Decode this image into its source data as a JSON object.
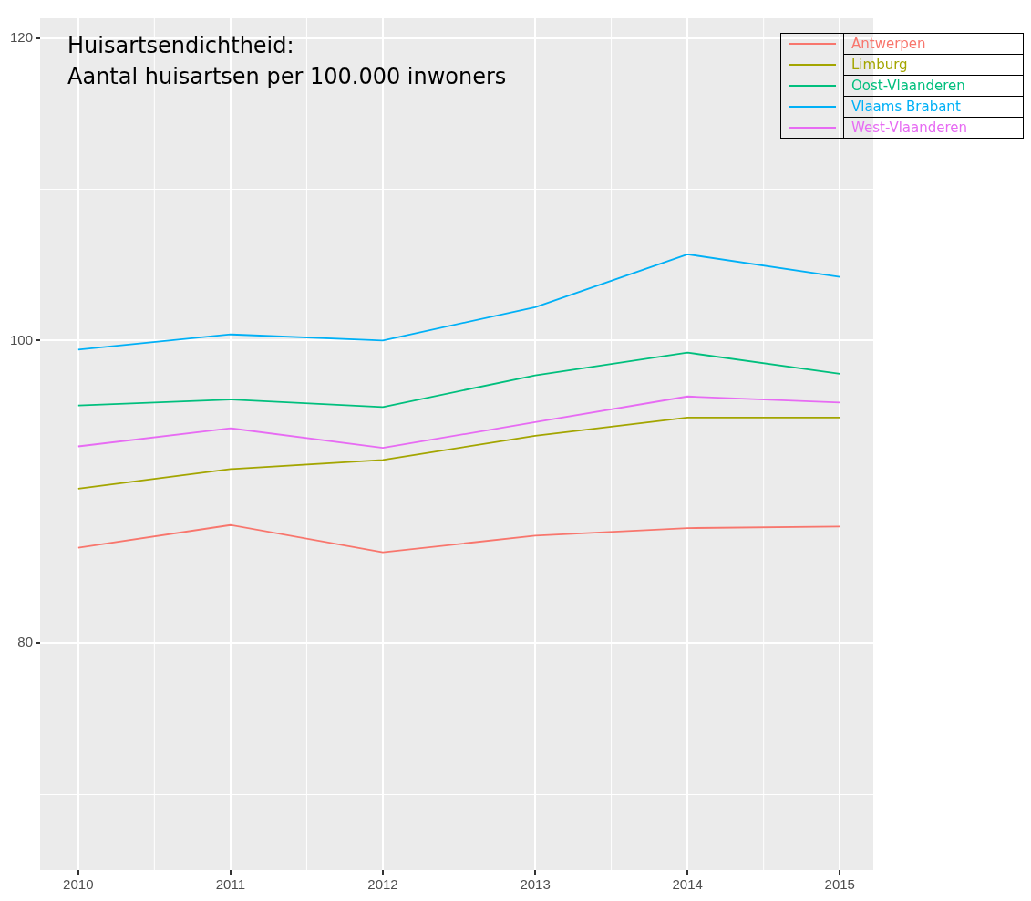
{
  "chart_data": {
    "type": "line",
    "title": "Huisartsendichtheid:",
    "subtitle": "Aantal huisartsen per 100.000 inwoners",
    "x": [
      2010,
      2011,
      2012,
      2013,
      2014,
      2015
    ],
    "xlim": [
      2009.75,
      2015.22
    ],
    "xticks": [
      2010,
      2011,
      2012,
      2013,
      2014,
      2015
    ],
    "ylim": [
      65,
      121.3
    ],
    "yticks": [
      {
        "value": 70,
        "label": null
      },
      80,
      {
        "value": 90,
        "label": null
      },
      100,
      {
        "value": 110,
        "label": null
      },
      120
    ],
    "grid": true,
    "legend": "top right",
    "marker": "none",
    "line_style": "solid",
    "series": [
      {
        "name": "Antwerpen",
        "color": "#f8766d",
        "values": [
          86.3,
          87.8,
          86.0,
          87.1,
          87.6,
          87.7
        ]
      },
      {
        "name": "Limburg",
        "color": "#a3a500",
        "values": [
          90.2,
          91.5,
          92.1,
          93.7,
          94.9,
          94.9
        ]
      },
      {
        "name": "Oost-Vlaanderen",
        "color": "#00bf7d",
        "values": [
          95.7,
          96.1,
          95.6,
          97.7,
          99.2,
          97.8
        ]
      },
      {
        "name": "Vlaams Brabant",
        "color": "#00b0f6",
        "values": [
          99.4,
          100.4,
          100.0,
          102.2,
          105.7,
          104.2
        ]
      },
      {
        "name": "West-Vlaanderen",
        "color": "#e76bf3",
        "values": [
          93.0,
          94.2,
          92.9,
          94.6,
          96.3,
          95.9
        ]
      }
    ]
  }
}
